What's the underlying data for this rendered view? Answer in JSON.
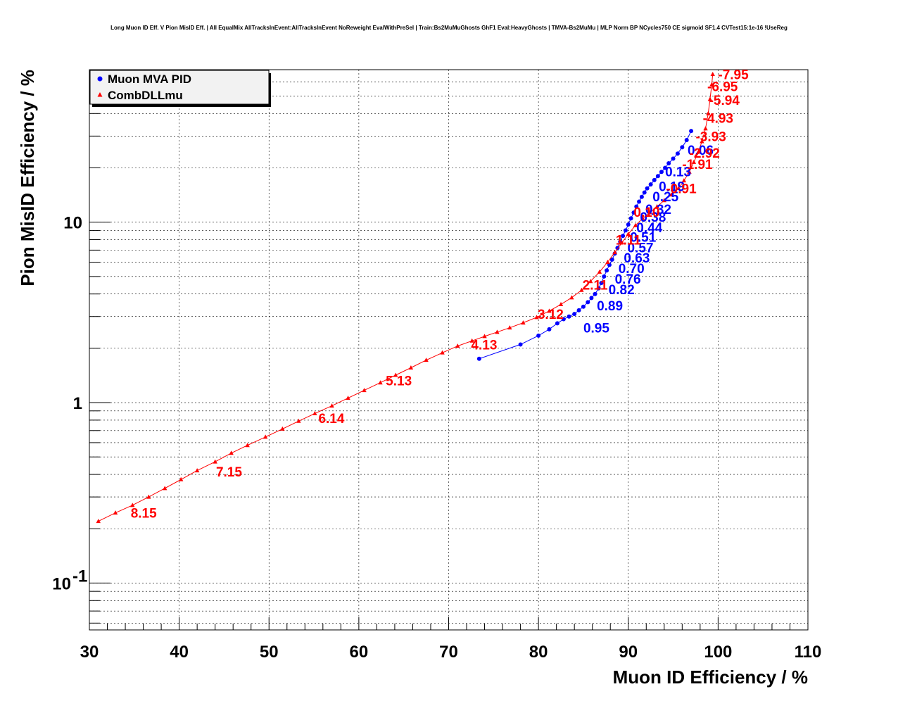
{
  "chart_data": {
    "type": "scatter",
    "title": "Long Muon ID Eff. V Pion MisID Eff. | All EqualMix AllTracksInEvent:AllTracksInEvent NoReweight EvalWithPreSel | Train:Bs2MuMuGhosts GhF1 Eval:HeavyGhosts | TMVA-Bs2MuMu | MLP Norm BP NCycles750 CE sigmoid SF1.4 CVTest15:1e-16 !UseReg",
    "xlabel": "Muon ID Efficiency / %",
    "ylabel": "Pion MisID Efficiency / %",
    "xlim": [
      30,
      110
    ],
    "ylim": [
      0.055,
      70
    ],
    "yscale": "log",
    "grid": true,
    "legend_position": "top-left",
    "x_ticks": [
      "30",
      "40",
      "50",
      "60",
      "70",
      "80",
      "90",
      "100",
      "110"
    ],
    "y_ticks": [
      {
        "value": 0.1,
        "label": "10",
        "sup": "-1"
      },
      {
        "value": 1,
        "label": "1",
        "sup": ""
      },
      {
        "value": 10,
        "label": "10",
        "sup": ""
      }
    ],
    "series": [
      {
        "name": "Muon MVA PID",
        "color": "#0000ff",
        "marker": "circle",
        "points": [
          [
            73.4,
            1.75
          ],
          [
            78.0,
            2.1
          ],
          [
            80.0,
            2.35
          ],
          [
            81.2,
            2.55
          ],
          [
            82.1,
            2.75
          ],
          [
            82.8,
            2.9
          ],
          [
            83.4,
            3.0
          ],
          [
            84.0,
            3.1
          ],
          [
            84.5,
            3.25
          ],
          [
            85.0,
            3.4
          ],
          [
            85.5,
            3.6
          ],
          [
            85.9,
            3.8
          ],
          [
            86.3,
            4.0
          ],
          [
            86.7,
            4.3
          ],
          [
            87.0,
            4.6
          ],
          [
            87.3,
            5.0
          ],
          [
            87.6,
            5.4
          ],
          [
            87.9,
            5.8
          ],
          [
            88.2,
            6.2
          ],
          [
            88.5,
            6.7
          ],
          [
            88.8,
            7.2
          ],
          [
            89.1,
            7.8
          ],
          [
            89.4,
            8.4
          ],
          [
            89.7,
            9.0
          ],
          [
            90.0,
            9.7
          ],
          [
            90.3,
            10.5
          ],
          [
            90.6,
            11.3
          ],
          [
            90.9,
            12.2
          ],
          [
            91.2,
            13.0
          ],
          [
            91.5,
            13.8
          ],
          [
            91.8,
            14.6
          ],
          [
            92.1,
            15.4
          ],
          [
            92.5,
            16.2
          ],
          [
            92.9,
            17.1
          ],
          [
            93.3,
            18.0
          ],
          [
            93.7,
            19.0
          ],
          [
            94.1,
            20.0
          ],
          [
            94.5,
            21.2
          ],
          [
            95.0,
            22.5
          ],
          [
            95.5,
            24.0
          ],
          [
            96.0,
            26.0
          ],
          [
            96.5,
            28.5
          ],
          [
            97.0,
            32.0
          ]
        ],
        "labels": [
          {
            "text": "0.95",
            "x": 85.0,
            "y": 2.6
          },
          {
            "text": "0.89",
            "x": 86.5,
            "y": 3.45
          },
          {
            "text": "0.82",
            "x": 87.8,
            "y": 4.25
          },
          {
            "text": "0.76",
            "x": 88.5,
            "y": 4.85
          },
          {
            "text": "0.70",
            "x": 88.9,
            "y": 5.55
          },
          {
            "text": "0.63",
            "x": 89.5,
            "y": 6.35
          },
          {
            "text": "0.57",
            "x": 89.9,
            "y": 7.25
          },
          {
            "text": "0.51",
            "x": 90.2,
            "y": 8.3
          },
          {
            "text": "0.44",
            "x": 90.9,
            "y": 9.35
          },
          {
            "text": "0.38",
            "x": 91.3,
            "y": 10.7
          },
          {
            "text": "0.32",
            "x": 91.9,
            "y": 11.8
          },
          {
            "text": "0.25",
            "x": 92.7,
            "y": 13.9
          },
          {
            "text": "0.19",
            "x": 93.4,
            "y": 15.8
          },
          {
            "text": "0.13",
            "x": 94.1,
            "y": 19.1
          },
          {
            "text": "0.06",
            "x": 96.6,
            "y": 25.1
          }
        ]
      },
      {
        "name": "CombDLLmu",
        "color": "#ff0000",
        "marker": "triangle",
        "points": [
          [
            31.0,
            0.22
          ],
          [
            32.9,
            0.245
          ],
          [
            34.8,
            0.27
          ],
          [
            36.6,
            0.3
          ],
          [
            38.4,
            0.335
          ],
          [
            40.2,
            0.375
          ],
          [
            42.0,
            0.42
          ],
          [
            44.0,
            0.47
          ],
          [
            45.8,
            0.525
          ],
          [
            47.6,
            0.58
          ],
          [
            49.6,
            0.645
          ],
          [
            51.5,
            0.715
          ],
          [
            53.3,
            0.79
          ],
          [
            55.1,
            0.87
          ],
          [
            57.0,
            0.96
          ],
          [
            58.8,
            1.06
          ],
          [
            60.6,
            1.17
          ],
          [
            62.4,
            1.29
          ],
          [
            64.1,
            1.42
          ],
          [
            65.8,
            1.56
          ],
          [
            67.5,
            1.72
          ],
          [
            69.3,
            1.89
          ],
          [
            71.0,
            2.06
          ],
          [
            72.6,
            2.2
          ],
          [
            74.0,
            2.33
          ],
          [
            75.4,
            2.46
          ],
          [
            76.8,
            2.6
          ],
          [
            78.3,
            2.77
          ],
          [
            79.8,
            2.97
          ],
          [
            81.2,
            3.22
          ],
          [
            82.5,
            3.5
          ],
          [
            83.7,
            3.82
          ],
          [
            84.8,
            4.2
          ],
          [
            85.8,
            4.7
          ],
          [
            86.8,
            5.3
          ],
          [
            87.7,
            6.0
          ],
          [
            88.5,
            6.8
          ],
          [
            89.3,
            7.7
          ],
          [
            90.0,
            8.6
          ],
          [
            90.8,
            9.6
          ],
          [
            91.6,
            10.5
          ],
          [
            92.4,
            11.3
          ],
          [
            93.2,
            12.2
          ],
          [
            94.0,
            13.2
          ],
          [
            94.8,
            14.2
          ],
          [
            95.6,
            15.4
          ],
          [
            96.2,
            17.0
          ],
          [
            96.8,
            19.0
          ],
          [
            97.3,
            21.5
          ],
          [
            97.8,
            24.5
          ],
          [
            98.2,
            28.0
          ],
          [
            98.6,
            33.0
          ],
          [
            98.9,
            40.0
          ],
          [
            99.1,
            48.0
          ],
          [
            99.3,
            58.0
          ],
          [
            99.4,
            66.0
          ]
        ],
        "labels": [
          {
            "text": "8.15",
            "x": 34.6,
            "y": 0.245
          },
          {
            "text": "7.15",
            "x": 44.1,
            "y": 0.415
          },
          {
            "text": "6.14",
            "x": 55.5,
            "y": 0.82
          },
          {
            "text": "5.13",
            "x": 63.0,
            "y": 1.33
          },
          {
            "text": "4.13",
            "x": 72.5,
            "y": 2.1
          },
          {
            "text": "3.12",
            "x": 79.9,
            "y": 3.1
          },
          {
            "text": "2.11",
            "x": 84.9,
            "y": 4.5
          },
          {
            "text": "1.11",
            "x": 88.6,
            "y": 8.0
          },
          {
            "text": "0.10",
            "x": 90.6,
            "y": 11.4
          },
          {
            "text": "-0.91",
            "x": 94.2,
            "y": 15.4
          },
          {
            "text": "-1.91",
            "x": 96.0,
            "y": 21.0
          },
          {
            "text": "-2.92",
            "x": 96.8,
            "y": 24.3
          },
          {
            "text": "-3.93",
            "x": 97.5,
            "y": 30.0
          },
          {
            "text": "-4.93",
            "x": 98.3,
            "y": 37.8
          },
          {
            "text": "-5.94",
            "x": 99.0,
            "y": 47.5
          },
          {
            "text": "-6.95",
            "x": 98.8,
            "y": 56.8
          },
          {
            "text": "-7.95",
            "x": 100.0,
            "y": 66.0
          }
        ]
      }
    ]
  }
}
